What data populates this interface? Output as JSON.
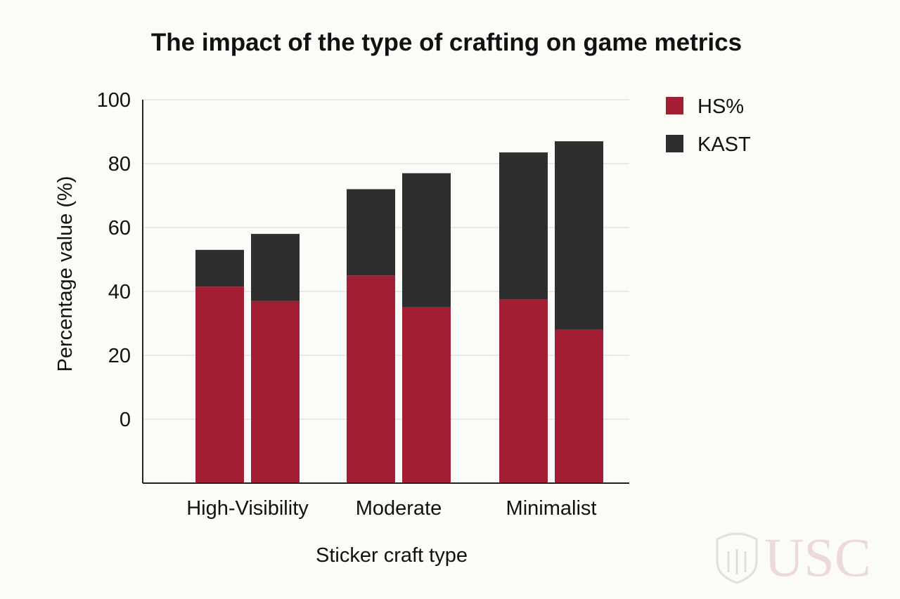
{
  "chart_data": {
    "type": "bar",
    "stacked": true,
    "title": "The impact of the type of crafting on game metrics",
    "xlabel": "Sticker craft type",
    "ylabel": "Percentage value (%)",
    "y_tick_labels": [
      "100",
      "80",
      "60",
      "40",
      "20",
      "0"
    ],
    "y_tick_values": [
      100,
      80,
      60,
      40,
      20,
      0
    ],
    "categories": [
      "High-Visibility",
      "Moderate",
      "Minimalist"
    ],
    "bars_per_category": 2,
    "series": [
      {
        "name": "HS%",
        "color": "#a31d33",
        "values": [
          [
            41.5,
            37
          ],
          [
            45,
            35
          ],
          [
            37.5,
            28
          ]
        ]
      },
      {
        "name": "KAST",
        "color": "#2e2e2e",
        "values": [
          [
            53,
            58
          ],
          [
            72,
            77
          ],
          [
            83.5,
            87
          ]
        ]
      }
    ],
    "bottom_value": -20,
    "ylim": [
      -20,
      100
    ],
    "grid": true,
    "legend_position": "top-right"
  },
  "watermark": {
    "text": "USC",
    "color": "#eed9da"
  }
}
